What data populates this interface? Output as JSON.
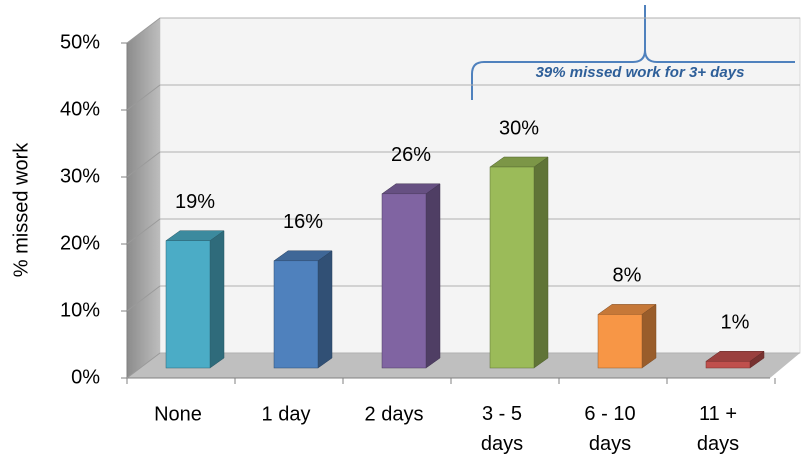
{
  "chart_data": {
    "type": "bar3d",
    "y_axis_label": "% missed work",
    "categories": [
      "None",
      "1 day",
      "2 days",
      "3 - 5 days",
      "6 - 10 days",
      "11 + days"
    ],
    "values": [
      19,
      16,
      26,
      30,
      8,
      1
    ],
    "value_labels": [
      "19%",
      "16%",
      "26%",
      "30%",
      "8%",
      "1%"
    ],
    "colors": [
      "#4bacc6",
      "#4f81bd",
      "#8064a2",
      "#9bbb59",
      "#f79646",
      "#c0504d"
    ],
    "ylim": [
      0,
      50
    ],
    "yticks": [
      {
        "value": 0,
        "label": "0%"
      },
      {
        "value": 10,
        "label": "10%"
      },
      {
        "value": 20,
        "label": "20%"
      },
      {
        "value": 30,
        "label": "30%"
      },
      {
        "value": 40,
        "label": "40%"
      },
      {
        "value": 50,
        "label": "50%"
      }
    ],
    "grid": true,
    "annotation": "39% missed work for 3+ days"
  }
}
